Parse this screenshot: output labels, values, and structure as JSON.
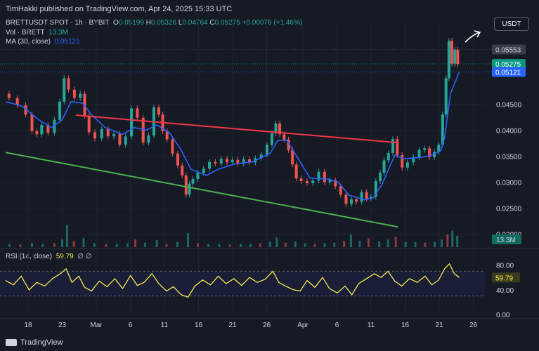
{
  "header": {
    "published": "TimHakki published on TradingView.com, Apr 24, 2025 15:33 UTC"
  },
  "legend": {
    "symbol": "BRETTUSDT SPOT · 1h · BYBIT",
    "o_label": "O",
    "o_value": "0.05199",
    "h_label": "H",
    "h_value": "0.05326",
    "l_label": "L",
    "l_value": "0.04764",
    "c_label": "C",
    "c_value": "0.05275",
    "change": "+0.00076 (+1.46%)",
    "vol_label": "Vol · BRETT",
    "vol_value": "13.3M",
    "ma_label": "MA (30, close)",
    "ma_value": "0.05121",
    "rsi_label": "RSI (14, close)",
    "rsi_value": "59.79",
    "rsi_extra": "∅ ∅"
  },
  "currency_button": "USDT",
  "footer": {
    "brand": "TradingView"
  },
  "colors": {
    "up": "#26a69a",
    "down": "#ef5350",
    "ma": "#2962ff",
    "red_line": "#f23645",
    "green_line": "#4caf50",
    "rsi": "#f7e94e",
    "bg": "#161a25"
  },
  "chart_data": {
    "type": "candlestick",
    "price_axis": {
      "ticks": [
        "0.04500",
        "0.04000",
        "0.03500",
        "0.03000",
        "0.02500",
        "0.02000"
      ],
      "ylim": [
        0.0175,
        0.061
      ]
    },
    "price_tags": [
      {
        "label": "0.05553",
        "value": 0.05553,
        "color": "#d1d4dc",
        "bg": "#3a3e4a"
      },
      {
        "label": "0.05275",
        "value": 0.05275,
        "color": "#ffffff",
        "bg": "#089981"
      },
      {
        "label": "0.05121",
        "value": 0.05121,
        "color": "#ffffff",
        "bg": "#2962ff"
      }
    ],
    "volume_tag": "13.3M",
    "rsi_axis": {
      "ticks": [
        "80.00",
        "40.00",
        "0.00"
      ],
      "ylim": [
        0,
        100
      ],
      "band": [
        30,
        70
      ]
    },
    "rsi_tag": "59.79",
    "x_axis": {
      "ticks": [
        "18",
        "23",
        "Mar",
        "6",
        "11",
        "16",
        "21",
        "26",
        "Apr",
        "6",
        "11",
        "16",
        "21",
        "26"
      ]
    },
    "trendlines": [
      {
        "name": "resistance",
        "color": "#f23645",
        "from": [
          21,
          0.0429
        ],
        "to": [
          54,
          0.0376
        ]
      },
      {
        "name": "support",
        "color": "#4caf50",
        "from": [
          13.8,
          0.0357
        ],
        "to": [
          54,
          0.0214
        ]
      }
    ],
    "path": [
      [
        13.8,
        0.047
      ],
      [
        14.5,
        0.0462
      ],
      [
        15.5,
        0.0448
      ],
      [
        16.2,
        0.043
      ],
      [
        16.8,
        0.0398
      ],
      [
        17.2,
        0.0392
      ],
      [
        17.8,
        0.041
      ],
      [
        18.5,
        0.0395
      ],
      [
        19.1,
        0.042
      ],
      [
        19.6,
        0.0455
      ],
      [
        20.0,
        0.05
      ],
      [
        20.5,
        0.0478
      ],
      [
        21.2,
        0.0462
      ],
      [
        21.7,
        0.047
      ],
      [
        22.1,
        0.0428
      ],
      [
        22.6,
        0.0396
      ],
      [
        23.3,
        0.0384
      ],
      [
        24.0,
        0.0402
      ],
      [
        24.6,
        0.0388
      ],
      [
        25.2,
        0.0393
      ],
      [
        25.8,
        0.0372
      ],
      [
        26.4,
        0.0388
      ],
      [
        27.0,
        0.0442
      ],
      [
        27.6,
        0.0424
      ],
      [
        28.2,
        0.0376
      ],
      [
        28.7,
        0.039
      ],
      [
        29.3,
        0.0444
      ],
      [
        29.7,
        0.043
      ],
      [
        30.1,
        0.0398
      ],
      [
        30.6,
        0.0382
      ],
      [
        31.2,
        0.0355
      ],
      [
        31.7,
        0.0332
      ],
      [
        32.1,
        0.0313
      ],
      [
        32.5,
        0.0276
      ],
      [
        32.8,
        0.0297
      ],
      [
        33.2,
        0.0306
      ],
      [
        33.8,
        0.0318
      ],
      [
        34.4,
        0.0326
      ],
      [
        35.0,
        0.0339
      ],
      [
        35.6,
        0.0336
      ],
      [
        36.2,
        0.0345
      ],
      [
        36.8,
        0.0338
      ],
      [
        37.3,
        0.0343
      ],
      [
        37.9,
        0.0336
      ],
      [
        38.5,
        0.0344
      ],
      [
        39.1,
        0.0338
      ],
      [
        39.7,
        0.0346
      ],
      [
        40.3,
        0.0353
      ],
      [
        40.9,
        0.0372
      ],
      [
        41.3,
        0.0394
      ],
      [
        41.7,
        0.0413
      ],
      [
        42.1,
        0.0392
      ],
      [
        42.6,
        0.0382
      ],
      [
        43.0,
        0.0362
      ],
      [
        43.4,
        0.0334
      ],
      [
        43.8,
        0.0307
      ],
      [
        44.4,
        0.0302
      ],
      [
        45.0,
        0.0298
      ],
      [
        45.6,
        0.0303
      ],
      [
        46.2,
        0.032
      ],
      [
        46.8,
        0.03
      ],
      [
        47.3,
        0.0304
      ],
      [
        47.9,
        0.0292
      ],
      [
        48.4,
        0.0276
      ],
      [
        49.0,
        0.0258
      ],
      [
        49.5,
        0.0267
      ],
      [
        50.0,
        0.0262
      ],
      [
        50.6,
        0.0281
      ],
      [
        51.0,
        0.0268
      ],
      [
        51.5,
        0.0272
      ],
      [
        52.0,
        0.0302
      ],
      [
        52.4,
        0.0318
      ],
      [
        52.8,
        0.0342
      ],
      [
        53.3,
        0.0356
      ],
      [
        53.7,
        0.0383
      ],
      [
        54.2,
        0.0352
      ],
      [
        54.7,
        0.0328
      ],
      [
        55.3,
        0.0338
      ],
      [
        55.9,
        0.0348
      ],
      [
        56.5,
        0.0362
      ],
      [
        57.0,
        0.0365
      ],
      [
        57.5,
        0.0348
      ],
      [
        58.0,
        0.0358
      ],
      [
        58.4,
        0.0372
      ],
      [
        58.8,
        0.043
      ],
      [
        59.1,
        0.05
      ],
      [
        59.4,
        0.0572
      ],
      [
        59.7,
        0.0528
      ],
      [
        60.0,
        0.0555
      ],
      [
        60.3,
        0.0527
      ]
    ],
    "ma_path": [
      [
        13.8,
        0.0455
      ],
      [
        15.5,
        0.0446
      ],
      [
        17.2,
        0.042
      ],
      [
        18.5,
        0.0405
      ],
      [
        19.6,
        0.042
      ],
      [
        20.5,
        0.0455
      ],
      [
        21.7,
        0.0452
      ],
      [
        22.6,
        0.043
      ],
      [
        24.0,
        0.0405
      ],
      [
        25.8,
        0.0392
      ],
      [
        27.0,
        0.0405
      ],
      [
        28.2,
        0.04
      ],
      [
        29.3,
        0.041
      ],
      [
        30.6,
        0.0395
      ],
      [
        31.7,
        0.0365
      ],
      [
        32.8,
        0.0325
      ],
      [
        34.4,
        0.0313
      ],
      [
        35.6,
        0.0325
      ],
      [
        37.3,
        0.0335
      ],
      [
        39.1,
        0.0339
      ],
      [
        40.9,
        0.0355
      ],
      [
        41.7,
        0.038
      ],
      [
        42.6,
        0.0381
      ],
      [
        43.8,
        0.0345
      ],
      [
        45.0,
        0.0308
      ],
      [
        46.8,
        0.0306
      ],
      [
        47.9,
        0.03
      ],
      [
        49.0,
        0.0275
      ],
      [
        50.6,
        0.0266
      ],
      [
        51.5,
        0.027
      ],
      [
        52.4,
        0.0296
      ],
      [
        53.7,
        0.0352
      ],
      [
        54.7,
        0.0345
      ],
      [
        56.5,
        0.0348
      ],
      [
        57.5,
        0.0352
      ],
      [
        58.4,
        0.036
      ],
      [
        58.8,
        0.0385
      ],
      [
        59.4,
        0.047
      ],
      [
        60.3,
        0.0512
      ]
    ],
    "volume_bars": [
      [
        14.2,
        0.05
      ],
      [
        15.3,
        0.04
      ],
      [
        16.5,
        0.07
      ],
      [
        17.6,
        0.05
      ],
      [
        18.8,
        0.06
      ],
      [
        19.6,
        0.12
      ],
      [
        20.1,
        0.35
      ],
      [
        20.8,
        0.1
      ],
      [
        21.8,
        0.14
      ],
      [
        22.9,
        0.06
      ],
      [
        24.1,
        0.05
      ],
      [
        25.2,
        0.05
      ],
      [
        26.3,
        0.06
      ],
      [
        27.1,
        0.12
      ],
      [
        28.1,
        0.07
      ],
      [
        29.3,
        0.11
      ],
      [
        30.3,
        0.05
      ],
      [
        31.4,
        0.08
      ],
      [
        32.5,
        0.22
      ],
      [
        33.5,
        0.06
      ],
      [
        34.6,
        0.05
      ],
      [
        35.7,
        0.05
      ],
      [
        36.8,
        0.04
      ],
      [
        37.9,
        0.05
      ],
      [
        38.9,
        0.05
      ],
      [
        39.9,
        0.06
      ],
      [
        40.9,
        0.09
      ],
      [
        41.6,
        0.15
      ],
      [
        42.5,
        0.07
      ],
      [
        43.5,
        0.09
      ],
      [
        44.5,
        0.06
      ],
      [
        45.5,
        0.05
      ],
      [
        46.5,
        0.06
      ],
      [
        47.5,
        0.07
      ],
      [
        48.5,
        0.1
      ],
      [
        49.2,
        0.2
      ],
      [
        50.1,
        0.1
      ],
      [
        51.0,
        0.14
      ],
      [
        52.1,
        0.09
      ],
      [
        53.0,
        0.12
      ],
      [
        53.8,
        0.16
      ],
      [
        54.8,
        0.08
      ],
      [
        55.8,
        0.08
      ],
      [
        56.8,
        0.07
      ],
      [
        57.8,
        0.08
      ],
      [
        58.5,
        0.12
      ],
      [
        59.1,
        0.2
      ],
      [
        59.6,
        0.26
      ],
      [
        60.1,
        0.18
      ]
    ],
    "rsi_path": [
      [
        13.8,
        55
      ],
      [
        14.6,
        48
      ],
      [
        15.4,
        62
      ],
      [
        16.2,
        40
      ],
      [
        17.0,
        52
      ],
      [
        17.8,
        46
      ],
      [
        18.6,
        58
      ],
      [
        19.4,
        66
      ],
      [
        20.0,
        74
      ],
      [
        20.6,
        52
      ],
      [
        21.3,
        62
      ],
      [
        21.9,
        44
      ],
      [
        22.6,
        38
      ],
      [
        23.4,
        54
      ],
      [
        24.2,
        45
      ],
      [
        25.0,
        58
      ],
      [
        25.8,
        42
      ],
      [
        26.6,
        63
      ],
      [
        27.3,
        47
      ],
      [
        28.0,
        52
      ],
      [
        28.8,
        66
      ],
      [
        29.5,
        50
      ],
      [
        30.3,
        38
      ],
      [
        31.0,
        45
      ],
      [
        31.8,
        32
      ],
      [
        32.5,
        28
      ],
      [
        33.2,
        46
      ],
      [
        34.0,
        56
      ],
      [
        34.8,
        48
      ],
      [
        35.6,
        62
      ],
      [
        36.4,
        50
      ],
      [
        37.2,
        58
      ],
      [
        38.0,
        47
      ],
      [
        38.8,
        60
      ],
      [
        39.6,
        52
      ],
      [
        40.4,
        57
      ],
      [
        41.2,
        70
      ],
      [
        41.8,
        52
      ],
      [
        42.5,
        46
      ],
      [
        43.3,
        40
      ],
      [
        44.0,
        38
      ],
      [
        44.7,
        55
      ],
      [
        45.5,
        44
      ],
      [
        46.3,
        60
      ],
      [
        47.0,
        42
      ],
      [
        47.8,
        35
      ],
      [
        48.6,
        46
      ],
      [
        49.3,
        32
      ],
      [
        50.0,
        50
      ],
      [
        50.8,
        58
      ],
      [
        51.6,
        66
      ],
      [
        52.3,
        60
      ],
      [
        53.0,
        70
      ],
      [
        53.7,
        54
      ],
      [
        54.4,
        46
      ],
      [
        55.2,
        58
      ],
      [
        56.0,
        52
      ],
      [
        56.8,
        62
      ],
      [
        57.5,
        48
      ],
      [
        58.2,
        56
      ],
      [
        58.8,
        74
      ],
      [
        59.3,
        82
      ],
      [
        59.8,
        66
      ],
      [
        60.3,
        60
      ]
    ]
  }
}
